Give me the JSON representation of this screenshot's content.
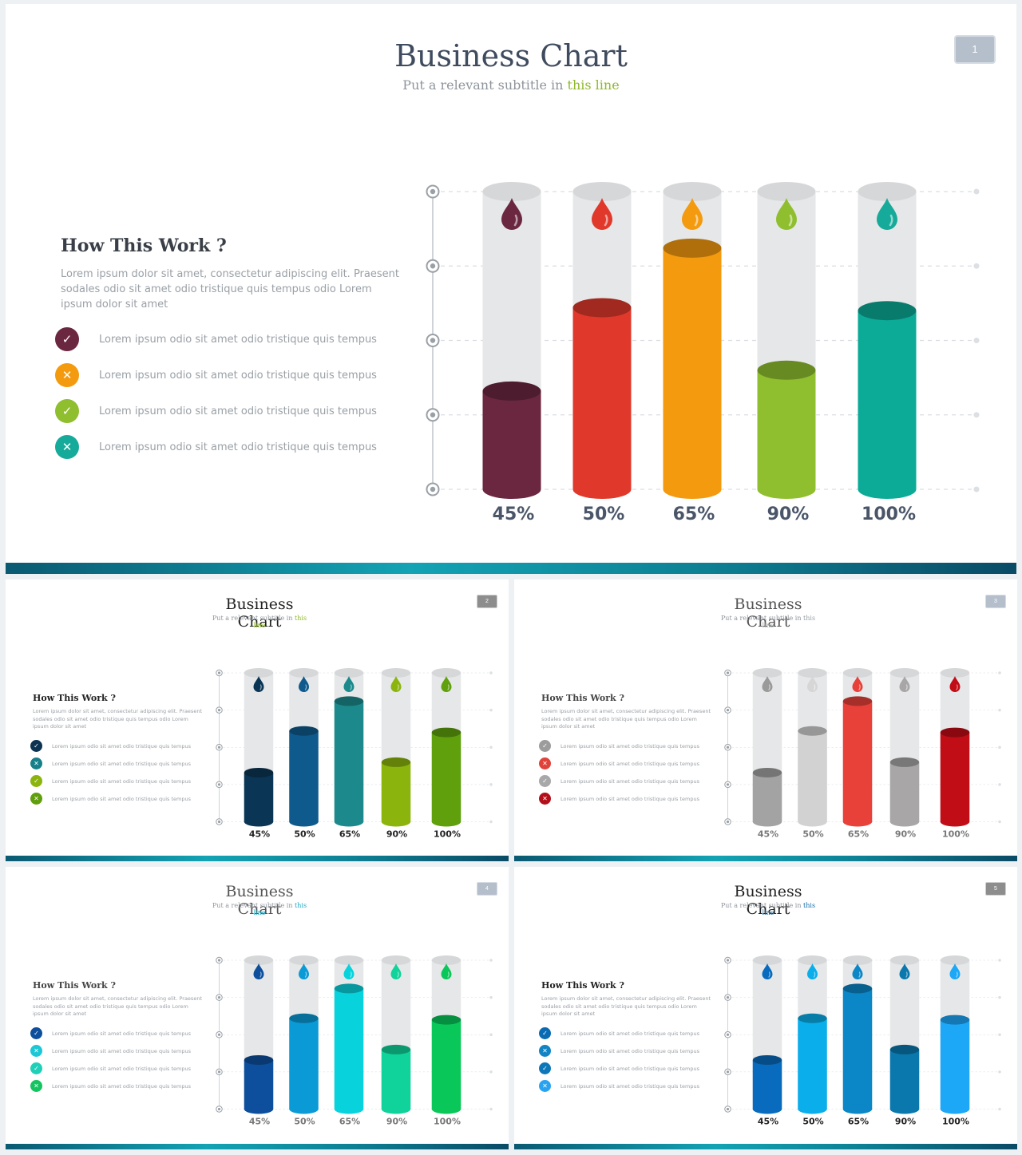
{
  "slides": [
    {
      "id": "s1",
      "number": "1",
      "title": "Business Chart",
      "subtitle_pre": "Put a relevant subtitle in ",
      "subtitle_hl": "this line",
      "subtitle_hl_color": "#8fb82c",
      "title_color": "#3f4b5e",
      "badge_bg": "#b5bfcc",
      "how_title": "How This Work ?",
      "description": "Lorem ipsum dolor sit amet, consectetur adipiscing elit. Praesent sodales odio sit amet odio tristique quis tempus odio Lorem ipsum dolor sit amet",
      "items": [
        {
          "icon": "check-icon",
          "color": "#6b2740",
          "text": "Lorem ipsum odio sit amet odio tristique quis tempus"
        },
        {
          "icon": "cross-icon",
          "color": "#f49a0e",
          "text": "Lorem ipsum odio sit amet odio tristique quis tempus"
        },
        {
          "icon": "check-icon",
          "color": "#8fbf2f",
          "text": "Lorem ipsum odio sit amet odio tristique quis tempus"
        },
        {
          "icon": "cross-icon",
          "color": "#16aa9a",
          "text": "Lorem ipsum odio sit amet odio tristique quis tempus"
        }
      ]
    },
    {
      "id": "s2",
      "number": "2",
      "title": "Business Chart",
      "subtitle_pre": "Put a relevant subtitle in ",
      "subtitle_hl": "this line",
      "subtitle_hl_color": "#8fb82c",
      "title_color": "#222222",
      "badge_bg": "#8d8d8d",
      "how_title": "How This Work ?",
      "description": "Lorem ipsum dolor sit amet, consectetur adipiscing elit. Praesent sodales odio sit amet odio tristique quis tempus odio Lorem ipsum dolor sit amet",
      "items": [
        {
          "icon": "check-icon",
          "color": "#0c3352",
          "text": "Lorem ipsum odio sit amet odio tristique quis tempus"
        },
        {
          "icon": "cross-icon",
          "color": "#16808a",
          "text": "Lorem ipsum odio sit amet odio tristique quis tempus"
        },
        {
          "icon": "check-icon",
          "color": "#8bb50d",
          "text": "Lorem ipsum odio sit amet odio tristique quis tempus"
        },
        {
          "icon": "cross-icon",
          "color": "#5f9e0c",
          "text": "Lorem ipsum odio sit amet odio tristique quis tempus"
        }
      ]
    },
    {
      "id": "s3",
      "number": "3",
      "title": "Business Chart",
      "subtitle_pre": "Put a relevant subtitle in ",
      "subtitle_hl": "this line",
      "subtitle_hl_color": "#9aa0a6",
      "title_color": "#555555",
      "badge_bg": "#b5bfcc",
      "how_title": "How This Work ?",
      "description": "Lorem ipsum dolor sit amet, consectetur adipiscing elit. Praesent sodales odio sit amet odio tristique quis tempus odio Lorem ipsum dolor sit amet",
      "items": [
        {
          "icon": "check-icon",
          "color": "#9c9c9c",
          "text": "Lorem ipsum odio sit amet odio tristique quis tempus"
        },
        {
          "icon": "cross-icon",
          "color": "#e0433a",
          "text": "Lorem ipsum odio sit amet odio tristique quis tempus"
        },
        {
          "icon": "check-icon",
          "color": "#a8a8a8",
          "text": "Lorem ipsum odio sit amet odio tristique quis tempus"
        },
        {
          "icon": "cross-icon",
          "color": "#b30f1a",
          "text": "Lorem ipsum odio sit amet odio tristique quis tempus"
        }
      ]
    },
    {
      "id": "s4",
      "number": "4",
      "title": "Business Chart",
      "subtitle_pre": "Put a relevant subtitle in ",
      "subtitle_hl": "this line",
      "subtitle_hl_color": "#17a8c4",
      "title_color": "#555555",
      "badge_bg": "#b5bfcc",
      "how_title": "How This Work ?",
      "description": "Lorem ipsum dolor sit amet, consectetur adipiscing elit. Praesent sodales odio sit amet odio tristique quis tempus odio Lorem ipsum dolor sit amet",
      "items": [
        {
          "icon": "check-icon",
          "color": "#0d4f9c",
          "text": "Lorem ipsum odio sit amet odio tristique quis tempus"
        },
        {
          "icon": "cross-icon",
          "color": "#1cc7d6",
          "text": "Lorem ipsum odio sit amet odio tristique quis tempus"
        },
        {
          "icon": "check-icon",
          "color": "#1fd0b8",
          "text": "Lorem ipsum odio sit amet odio tristique quis tempus"
        },
        {
          "icon": "cross-icon",
          "color": "#14c461",
          "text": "Lorem ipsum odio sit amet odio tristique quis tempus"
        }
      ]
    },
    {
      "id": "s5",
      "number": "5",
      "title": "Business Chart",
      "subtitle_pre": "Put a relevant subtitle in ",
      "subtitle_hl": "this line",
      "subtitle_hl_color": "#0d6aa8",
      "title_color": "#222222",
      "badge_bg": "#8d8d8d",
      "how_title": "How This Work ?",
      "description": "Lorem ipsum dolor sit amet, consectetur adipiscing elit. Praesent sodales odio sit amet odio tristique quis tempus odio Lorem ipsum dolor sit amet",
      "items": [
        {
          "icon": "check-icon",
          "color": "#0a6bb3",
          "text": "Lorem ipsum odio sit amet odio tristique quis tempus"
        },
        {
          "icon": "cross-icon",
          "color": "#1184c4",
          "text": "Lorem ipsum odio sit amet odio tristique quis tempus"
        },
        {
          "icon": "check-icon",
          "color": "#0d77b8",
          "text": "Lorem ipsum odio sit amet odio tristique quis tempus"
        },
        {
          "icon": "cross-icon",
          "color": "#29a3f0",
          "text": "Lorem ipsum odio sit amet odio tristique quis tempus"
        }
      ]
    }
  ],
  "chart_data": [
    {
      "type": "bar",
      "style": "cylinder",
      "categories": [
        "45%",
        "50%",
        "65%",
        "90%",
        "100%"
      ],
      "values": [
        45,
        50,
        65,
        90,
        100
      ],
      "fill_levels": [
        0.33,
        0.61,
        0.81,
        0.4,
        0.6
      ],
      "colors": [
        "#6b2740",
        "#e0392b",
        "#f49a0e",
        "#8fbf2f",
        "#0cab98"
      ],
      "drop_colors": [
        "#6b2740",
        "#e0392b",
        "#f49a0e",
        "#8fbf2f",
        "#16aa9a"
      ],
      "label_color": "#4a5568",
      "grid": true
    },
    {
      "type": "bar",
      "style": "cylinder",
      "categories": [
        "45%",
        "50%",
        "65%",
        "90%",
        "100%"
      ],
      "values": [
        45,
        50,
        65,
        90,
        100
      ],
      "fill_levels": [
        0.33,
        0.61,
        0.81,
        0.4,
        0.6
      ],
      "colors": [
        "#0b3554",
        "#0f5a8c",
        "#1c8a8c",
        "#8bb50d",
        "#5fa00c"
      ],
      "drop_colors": [
        "#0b3554",
        "#0f5a8c",
        "#1c8a8c",
        "#8bb50d",
        "#5fa00c"
      ],
      "label_color": "#222222",
      "grid": true
    },
    {
      "type": "bar",
      "style": "cylinder",
      "categories": [
        "45%",
        "50%",
        "65%",
        "90%",
        "100%"
      ],
      "values": [
        45,
        50,
        65,
        90,
        100
      ],
      "fill_levels": [
        0.33,
        0.61,
        0.81,
        0.4,
        0.6
      ],
      "colors": [
        "#a3a3a3",
        "#d2d2d2",
        "#e8413a",
        "#a8a6a6",
        "#c00d16"
      ],
      "drop_colors": [
        "#9a9a9a",
        "#d6d6d6",
        "#e8413a",
        "#a8a6a6",
        "#c00d16"
      ],
      "label_color": "#777777",
      "grid": true
    },
    {
      "type": "bar",
      "style": "cylinder",
      "categories": [
        "45%",
        "50%",
        "65%",
        "90%",
        "100%"
      ],
      "values": [
        45,
        50,
        65,
        90,
        100
      ],
      "fill_levels": [
        0.33,
        0.61,
        0.81,
        0.4,
        0.6
      ],
      "colors": [
        "#0d4f9c",
        "#0a9ad6",
        "#08d3dc",
        "#0fd39a",
        "#0ac75a"
      ],
      "drop_colors": [
        "#0d4f9c",
        "#0a9ad6",
        "#08d3dc",
        "#0fd39a",
        "#0ac75a"
      ],
      "label_color": "#777777",
      "grid": true
    },
    {
      "type": "bar",
      "style": "cylinder",
      "categories": [
        "45%",
        "50%",
        "65%",
        "90%",
        "100%"
      ],
      "values": [
        45,
        50,
        65,
        90,
        100
      ],
      "fill_levels": [
        0.33,
        0.61,
        0.81,
        0.4,
        0.6
      ],
      "colors": [
        "#086bbd",
        "#0aaeea",
        "#0b86c6",
        "#0a78ad",
        "#1da7f7"
      ],
      "drop_colors": [
        "#086bbd",
        "#0aaeea",
        "#0b86c6",
        "#0a78ad",
        "#1da7f7"
      ],
      "label_color": "#222222",
      "grid": true
    }
  ]
}
